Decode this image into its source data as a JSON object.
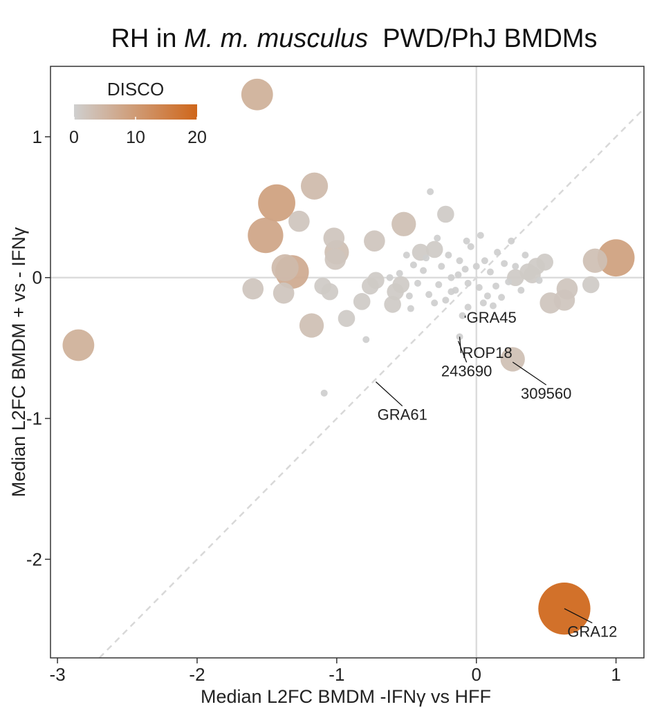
{
  "chart_data": {
    "type": "scatter",
    "title": {
      "prefix": "RH in ",
      "italic": "M. m. musculus",
      "suffix": "  PWD/PhJ BMDMs"
    },
    "xlabel": "Median L2FC BMDM -IFNγ vs HFF",
    "ylabel": "Median L2FC BMDM + vs - IFNγ",
    "xlim": [
      -3.05,
      1.2
    ],
    "ylim": [
      -2.7,
      1.5
    ],
    "xticks": [
      -3,
      -2,
      -1,
      0,
      1
    ],
    "yticks": [
      -2,
      -1,
      0,
      1
    ],
    "reference_lines": {
      "x_zero": true,
      "y_zero": true,
      "diagonal_identity": true
    },
    "grid": false,
    "legend": {
      "title": "DISCO",
      "position": "top-left",
      "colors": [
        "#cfcfcf",
        "#cf661a"
      ],
      "range": [
        0,
        20
      ],
      "ticks": [
        0,
        10,
        20
      ]
    },
    "size_scale": "point size increases with DISCO score",
    "points": [
      {
        "x": 0.63,
        "y": -2.35,
        "disco": 20
      },
      {
        "x": 1.0,
        "y": 0.14,
        "disco": 9
      },
      {
        "x": 0.85,
        "y": 0.12,
        "disco": 3
      },
      {
        "x": 0.82,
        "y": -0.05,
        "disco": 1
      },
      {
        "x": 0.65,
        "y": -0.08,
        "disco": 2
      },
      {
        "x": 0.63,
        "y": -0.16,
        "disco": 2
      },
      {
        "x": 0.53,
        "y": -0.18,
        "disco": 2
      },
      {
        "x": 0.49,
        "y": 0.11,
        "disco": 1
      },
      {
        "x": 0.43,
        "y": 0.08,
        "disco": 1
      },
      {
        "x": 0.37,
        "y": 0.04,
        "disco": 1
      },
      {
        "x": 0.28,
        "y": 0.0,
        "disco": 1
      },
      {
        "x": 0.26,
        "y": -0.58,
        "disco": 3
      },
      {
        "x": -1.57,
        "y": 1.3,
        "disco": 6
      },
      {
        "x": -1.43,
        "y": 0.53,
        "disco": 9
      },
      {
        "x": -1.51,
        "y": 0.3,
        "disco": 8
      },
      {
        "x": -1.16,
        "y": 0.65,
        "disco": 4
      },
      {
        "x": -1.32,
        "y": 0.04,
        "disco": 7
      },
      {
        "x": -1.37,
        "y": 0.07,
        "disco": 4
      },
      {
        "x": -1.27,
        "y": 0.4,
        "disco": 2
      },
      {
        "x": -1.02,
        "y": 0.28,
        "disco": 2
      },
      {
        "x": -1.0,
        "y": 0.18,
        "disco": 3
      },
      {
        "x": -1.01,
        "y": 0.13,
        "disco": 2
      },
      {
        "x": -0.52,
        "y": 0.38,
        "disco": 3
      },
      {
        "x": -0.73,
        "y": 0.26,
        "disco": 2
      },
      {
        "x": -0.22,
        "y": 0.45,
        "disco": 1
      },
      {
        "x": -0.33,
        "y": 0.61,
        "disco": 0
      },
      {
        "x": -2.85,
        "y": -0.48,
        "disco": 6
      },
      {
        "x": -1.6,
        "y": -0.08,
        "disco": 2
      },
      {
        "x": -1.38,
        "y": -0.11,
        "disco": 2
      },
      {
        "x": -1.18,
        "y": -0.34,
        "disco": 3
      },
      {
        "x": -1.1,
        "y": -0.06,
        "disco": 1
      },
      {
        "x": -1.05,
        "y": -0.1,
        "disco": 1
      },
      {
        "x": -0.93,
        "y": -0.29,
        "disco": 1
      },
      {
        "x": -0.82,
        "y": -0.17,
        "disco": 1
      },
      {
        "x": -0.72,
        "y": -0.02,
        "disco": 1
      },
      {
        "x": -0.76,
        "y": -0.06,
        "disco": 1
      },
      {
        "x": -0.6,
        "y": -0.19,
        "disco": 1
      },
      {
        "x": -0.58,
        "y": -0.1,
        "disco": 1
      },
      {
        "x": -0.54,
        "y": -0.05,
        "disco": 1
      },
      {
        "x": -0.47,
        "y": -0.22,
        "disco": 0
      },
      {
        "x": -0.79,
        "y": -0.44,
        "disco": 0
      },
      {
        "x": -1.09,
        "y": -0.82,
        "disco": 0
      },
      {
        "x": -0.55,
        "y": 0.03,
        "disco": 0
      },
      {
        "x": -0.45,
        "y": 0.09,
        "disco": 0
      },
      {
        "x": -0.4,
        "y": 0.18,
        "disco": 1
      },
      {
        "x": -0.36,
        "y": 0.14,
        "disco": 0
      },
      {
        "x": -0.3,
        "y": 0.2,
        "disco": 1
      },
      {
        "x": -0.25,
        "y": 0.08,
        "disco": 0
      },
      {
        "x": -0.2,
        "y": 0.16,
        "disco": 0
      },
      {
        "x": -0.18,
        "y": 0.0,
        "disco": 0
      },
      {
        "x": -0.12,
        "y": 0.12,
        "disco": 0
      },
      {
        "x": -0.08,
        "y": 0.06,
        "disco": 0
      },
      {
        "x": -0.04,
        "y": 0.22,
        "disco": 0
      },
      {
        "x": 0.03,
        "y": 0.3,
        "disco": 0
      },
      {
        "x": 0.06,
        "y": 0.12,
        "disco": 0
      },
      {
        "x": 0.1,
        "y": 0.04,
        "disco": 0
      },
      {
        "x": 0.15,
        "y": 0.18,
        "disco": 0
      },
      {
        "x": 0.2,
        "y": 0.1,
        "disco": 0
      },
      {
        "x": -0.42,
        "y": -0.04,
        "disco": 0
      },
      {
        "x": -0.34,
        "y": -0.12,
        "disco": 0
      },
      {
        "x": -0.27,
        "y": -0.05,
        "disco": 0
      },
      {
        "x": -0.22,
        "y": -0.16,
        "disco": 0
      },
      {
        "x": -0.15,
        "y": -0.09,
        "disco": 0
      },
      {
        "x": -0.06,
        "y": -0.04,
        "disco": 0
      },
      {
        "x": 0.02,
        "y": -0.07,
        "disco": 0
      },
      {
        "x": 0.08,
        "y": -0.13,
        "disco": 0
      },
      {
        "x": 0.14,
        "y": -0.06,
        "disco": 0
      },
      {
        "x": 0.18,
        "y": -0.14,
        "disco": 0
      },
      {
        "x": 0.23,
        "y": -0.03,
        "disco": 0
      },
      {
        "x": 0.32,
        "y": -0.09,
        "disco": 0
      },
      {
        "x": -0.1,
        "y": -0.27,
        "disco": 0
      },
      {
        "x": -0.06,
        "y": -0.21,
        "disco": 0
      },
      {
        "x": -0.12,
        "y": -0.42,
        "disco": 0
      },
      {
        "x": -0.13,
        "y": 0.02,
        "disco": 0
      },
      {
        "x": 0.25,
        "y": 0.26,
        "disco": 0
      },
      {
        "x": 0.35,
        "y": 0.16,
        "disco": 0
      },
      {
        "x": 0.4,
        "y": 0.02,
        "disco": 1
      },
      {
        "x": 0.45,
        "y": -0.02,
        "disco": 0
      },
      {
        "x": -0.62,
        "y": 0.0,
        "disco": 0
      },
      {
        "x": -0.5,
        "y": 0.16,
        "disco": 0
      },
      {
        "x": -0.38,
        "y": 0.05,
        "disco": 0
      },
      {
        "x": -0.28,
        "y": 0.28,
        "disco": 0
      },
      {
        "x": -0.07,
        "y": 0.26,
        "disco": 0
      },
      {
        "x": 0.0,
        "y": 0.08,
        "disco": 0
      },
      {
        "x": 0.05,
        "y": -0.18,
        "disco": 0
      },
      {
        "x": 0.12,
        "y": -0.2,
        "disco": 0
      },
      {
        "x": -0.48,
        "y": -0.13,
        "disco": 0
      },
      {
        "x": -0.3,
        "y": -0.18,
        "disco": 0
      },
      {
        "x": -0.18,
        "y": -0.1,
        "disco": 0
      },
      {
        "x": 0.28,
        "y": 0.08,
        "disco": 0
      }
    ],
    "annotations": [
      {
        "label": "GRA12",
        "x": 0.63,
        "y": -2.35,
        "text_x": 0.83,
        "text_y": -2.55,
        "anchor": "middle"
      },
      {
        "label": "GRA45",
        "x": -0.08,
        "y": -0.27,
        "text_x": -0.07,
        "text_y": -0.32,
        "anchor": "start"
      },
      {
        "label": "ROP18",
        "x": -0.12,
        "y": -0.42,
        "text_x": -0.1,
        "text_y": -0.57,
        "anchor": "start"
      },
      {
        "label": "243690",
        "x": -0.13,
        "y": -0.45,
        "text_x": -0.07,
        "text_y": -0.7,
        "anchor": "middle"
      },
      {
        "label": "309560",
        "x": 0.26,
        "y": -0.6,
        "text_x": 0.5,
        "text_y": -0.86,
        "anchor": "middle"
      },
      {
        "label": "GRA61",
        "x": -0.72,
        "y": -0.74,
        "text_x": -0.53,
        "text_y": -1.01,
        "anchor": "middle"
      }
    ]
  }
}
